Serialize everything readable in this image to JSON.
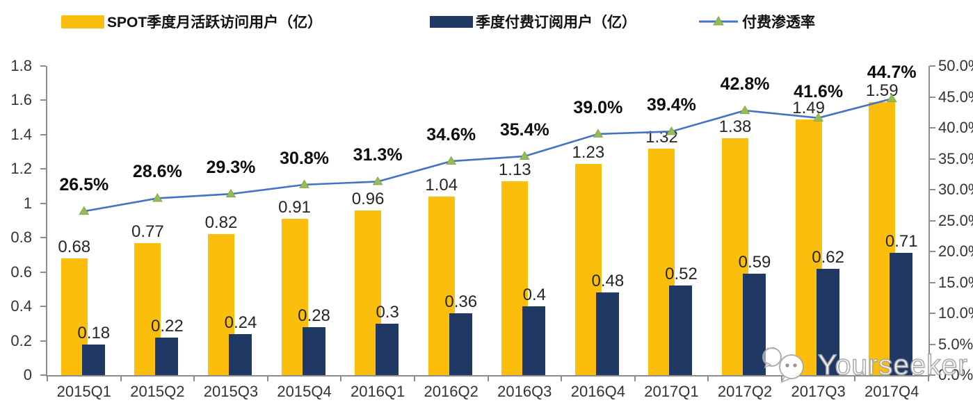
{
  "chart_data": {
    "type": "bar",
    "subtype": "clustered-bar-with-line-overlay",
    "categories": [
      "2015Q1",
      "2015Q2",
      "2015Q3",
      "2015Q4",
      "2016Q1",
      "2016Q2",
      "2016Q3",
      "2016Q4",
      "2017Q1",
      "2017Q2",
      "2017Q3",
      "2017Q4"
    ],
    "series": [
      {
        "name": "SPOT季度月活跃访问用户（亿）",
        "type": "bar",
        "color": "#FCBE0D",
        "axis": "left",
        "values": [
          0.68,
          0.77,
          0.82,
          0.91,
          0.96,
          1.04,
          1.13,
          1.23,
          1.32,
          1.38,
          1.49,
          1.59
        ],
        "labels": [
          "0.68",
          "0.77",
          "0.82",
          "0.91",
          "0.96",
          "1.04",
          "1.13",
          "1.23",
          "1.32",
          "1.38",
          "1.49",
          "1.59"
        ]
      },
      {
        "name": "季度付费订阅用户（亿）",
        "type": "bar",
        "color": "#1F3864",
        "axis": "left",
        "values": [
          0.18,
          0.22,
          0.24,
          0.28,
          0.3,
          0.36,
          0.4,
          0.48,
          0.52,
          0.59,
          0.62,
          0.71
        ],
        "labels": [
          "0.18",
          "0.22",
          "0.24",
          "0.28",
          "0.3",
          "0.36",
          "0.4",
          "0.48",
          "0.52",
          "0.59",
          "0.62",
          "0.71"
        ]
      },
      {
        "name": "付费渗透率",
        "type": "line",
        "color": "#4472C4",
        "marker": "triangle",
        "marker_color": "#97BB59",
        "axis": "right",
        "values": [
          26.5,
          28.6,
          29.3,
          30.8,
          31.3,
          34.6,
          35.4,
          39.0,
          39.4,
          42.8,
          41.6,
          44.7
        ],
        "labels": [
          "26.5%",
          "28.6%",
          "29.3%",
          "30.8%",
          "31.3%",
          "34.6%",
          "35.4%",
          "39.0%",
          "39.4%",
          "42.8%",
          "41.6%",
          "44.7%"
        ]
      }
    ],
    "left_axis": {
      "min": 0,
      "max": 1.8,
      "tick_labels": [
        "1.8",
        "1.6",
        "1.4",
        "1.2",
        "1",
        "0.8",
        "0.6",
        "0.4",
        "0.2",
        "0"
      ]
    },
    "right_axis": {
      "min": 0,
      "max": 50,
      "unit": "%",
      "tick_labels": [
        "50.0%",
        "45.0%",
        "40.0%",
        "35.0%",
        "30.0%",
        "25.0%",
        "20.0%",
        "15.0%",
        "10.0%",
        "5.0%",
        "0.0%"
      ]
    },
    "grid": false,
    "legend_position": "top"
  },
  "watermark": {
    "text": "Yourseeker",
    "icon": "wechat-bubbles-icon"
  }
}
